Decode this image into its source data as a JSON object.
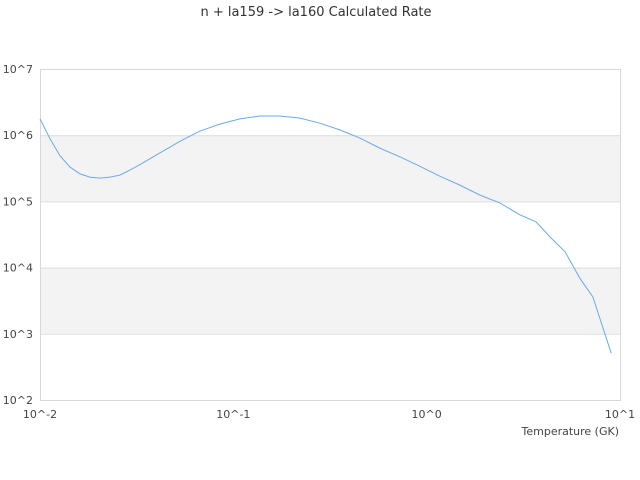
{
  "chart_data": {
    "type": "line",
    "title": "n + la159 -> la160 Calculated Rate",
    "xlabel": "Temperature (GK)",
    "ylabel": "",
    "xscale": "log",
    "yscale": "log",
    "xlim": [
      0.01,
      10
    ],
    "ylim": [
      100,
      10000000
    ],
    "x_ticks": [
      "10^-2",
      "10^-1",
      "10^0",
      "10^1"
    ],
    "y_ticks": [
      "10^2",
      "10^3",
      "10^4",
      "10^5",
      "10^6",
      "10^7"
    ],
    "grid": "horizontal, alternating bands",
    "legend": "none",
    "colors": {
      "line": "#6aaaf0",
      "band": "#f3f3f3",
      "grid": "#dddddd",
      "border": "#d8d8d8"
    },
    "series": [
      {
        "x": [
          0.01,
          0.0113,
          0.0127,
          0.0143,
          0.0161,
          0.0181,
          0.0204,
          0.023,
          0.0259,
          0.0292,
          0.0329,
          0.0417,
          0.0529,
          0.067,
          0.085,
          0.108,
          0.137,
          0.173,
          0.22,
          0.28,
          0.357,
          0.45,
          0.57,
          0.73,
          0.92,
          1.17,
          1.48,
          1.88,
          2.39,
          3.03,
          3.68,
          4.35,
          5.2,
          6.2,
          7.24,
          9.0
        ],
        "y": [
          1760000,
          870000,
          485000,
          330000,
          260000,
          233000,
          225000,
          233000,
          250000,
          297000,
          360000,
          540000,
          810000,
          1150000,
          1470000,
          1760000,
          1950000,
          1950000,
          1820000,
          1520000,
          1200000,
          910000,
          640000,
          470000,
          340000,
          240000,
          177000,
          125000,
          95000,
          63000,
          49000,
          29000,
          17300,
          6900,
          3600,
          510
        ]
      }
    ]
  }
}
